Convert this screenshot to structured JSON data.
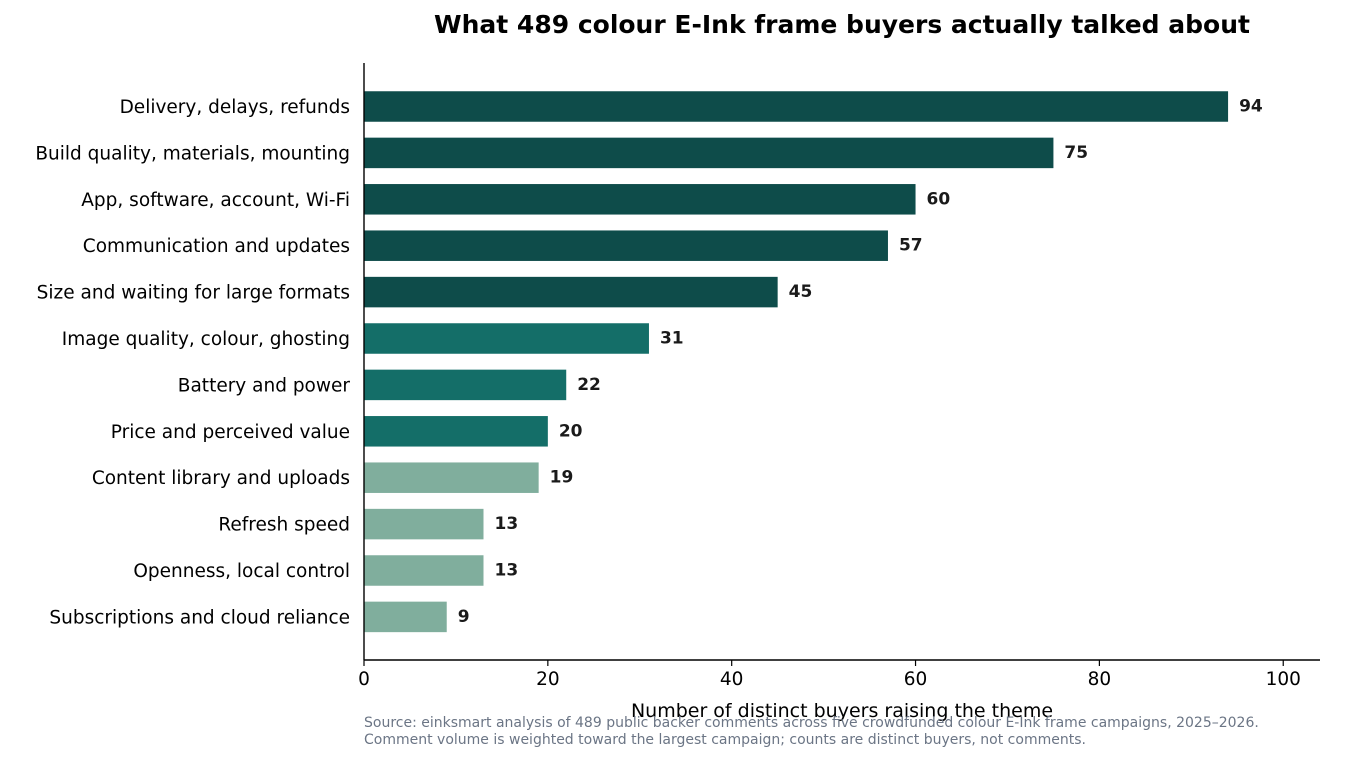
{
  "chart_data": {
    "type": "bar",
    "orientation": "horizontal",
    "title": "What 489 colour E-Ink frame buyers actually talked about",
    "xlabel": "Number of distinct buyers raising the theme",
    "ylabel": "",
    "xlim": [
      0,
      104
    ],
    "xticks": [
      0,
      20,
      40,
      60,
      80,
      100
    ],
    "grid": false,
    "categories": [
      "Delivery, delays, refunds",
      "Build quality, materials, mounting",
      "App, software, account, Wi-Fi",
      "Communication and updates",
      "Size and waiting for large formats",
      "Image quality, colour, ghosting",
      "Battery and power",
      "Price and perceived value",
      "Content library and uploads",
      "Refresh speed",
      "Openness, local control",
      "Subscriptions and cloud reliance"
    ],
    "values": [
      94,
      75,
      60,
      57,
      45,
      31,
      22,
      20,
      19,
      13,
      13,
      9
    ],
    "data_labels": [
      "94",
      "75",
      "60",
      "57",
      "45",
      "31",
      "22",
      "20",
      "19",
      "13",
      "13",
      "9"
    ],
    "bar_colors": [
      "#0e4c4a",
      "#0e4c4a",
      "#0e4c4a",
      "#0e4c4a",
      "#0e4c4a",
      "#146e68",
      "#146e68",
      "#146e68",
      "#80ae9d",
      "#80ae9d",
      "#80ae9d",
      "#80ae9d"
    ]
  },
  "source_lines": [
    "Source: einksmart analysis of 489 public backer comments across five crowdfunded colour E-Ink frame campaigns, 2025–2026.",
    "Comment volume is weighted toward the largest campaign; counts are distinct buyers, not comments."
  ]
}
